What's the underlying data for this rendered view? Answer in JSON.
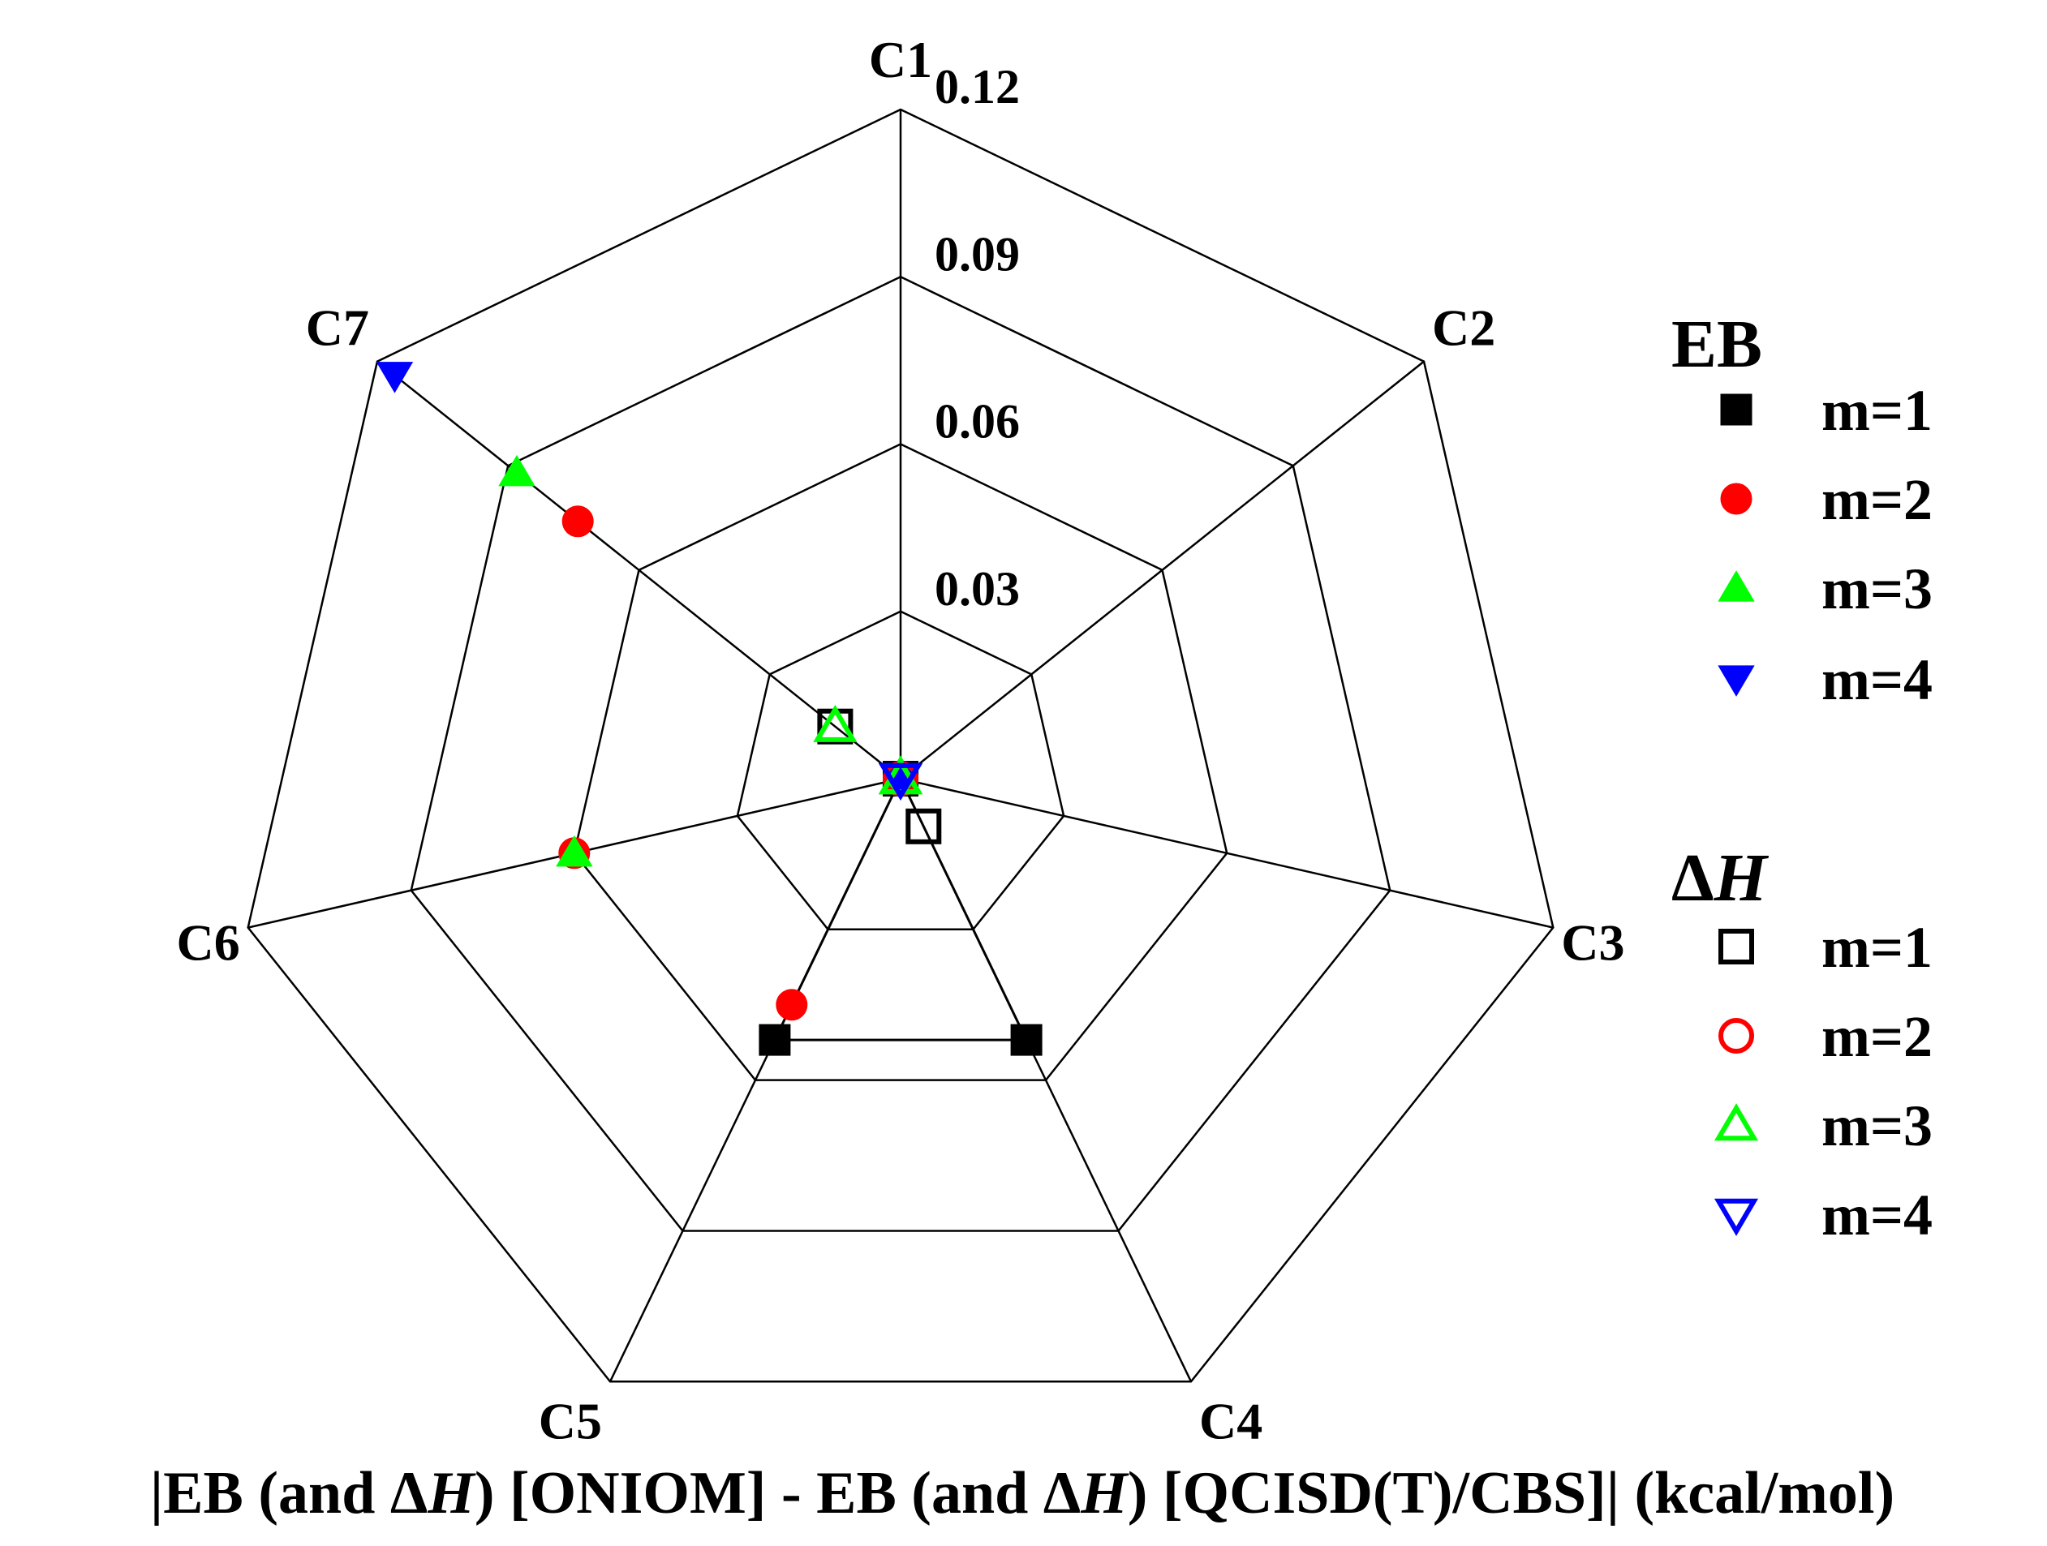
{
  "chart_data": {
    "type": "radar",
    "axes": [
      "C1",
      "C2",
      "C3",
      "C4",
      "C5",
      "C6",
      "C7"
    ],
    "rlim": [
      0,
      0.12
    ],
    "rticks": [
      0.03,
      0.06,
      0.09,
      0.12
    ],
    "rtick_labels": [
      "0.03",
      "0.06",
      "0.09",
      "0.12"
    ],
    "grid": true,
    "xlabel_parts": [
      {
        "text": "|EB (and Δ",
        "italic": false
      },
      {
        "text": "H",
        "italic": true
      },
      {
        "text": ") [ONIOM] - EB (and Δ",
        "italic": false
      },
      {
        "text": "H",
        "italic": true
      },
      {
        "text": ") [QCISD(T)/CBS]| (kcal/mol)",
        "italic": false
      }
    ],
    "legend_position": "right",
    "legend_groups": [
      {
        "title_parts": [
          {
            "text": "EB",
            "italic": false
          }
        ],
        "entries": [
          "EB-m1",
          "EB-m2",
          "EB-m3",
          "EB-m4"
        ]
      },
      {
        "title_parts": [
          {
            "text": "Δ",
            "italic": false
          },
          {
            "text": "H",
            "italic": true
          }
        ],
        "entries": [
          "dH-m1",
          "dH-m2",
          "dH-m3",
          "dH-m4"
        ]
      }
    ],
    "series": [
      {
        "id": "EB-m1",
        "label": "m=1",
        "marker": "square",
        "filled": true,
        "color": "#000000",
        "connect": true,
        "values": [
          0.0,
          0.0,
          0.0,
          0.052,
          0.052,
          0.0,
          0.0
        ]
      },
      {
        "id": "EB-m2",
        "label": "m=2",
        "marker": "circle",
        "filled": true,
        "color": "#ff0000",
        "connect": false,
        "values": [
          0.0,
          0.0,
          0.0,
          0.0,
          0.045,
          0.06,
          0.074
        ]
      },
      {
        "id": "EB-m3",
        "label": "m=3",
        "marker": "triangle-up",
        "filled": true,
        "color": "#00ff00",
        "connect": false,
        "values": [
          0.001,
          0.0,
          0.0,
          0.0,
          0.0,
          0.06,
          0.088
        ]
      },
      {
        "id": "EB-m4",
        "label": "m=4",
        "marker": "triangle-down",
        "filled": true,
        "color": "#0000ff",
        "connect": false,
        "values": [
          0.0,
          0.0,
          0.0,
          0.0,
          0.0,
          0.0,
          0.116
        ]
      },
      {
        "id": "dH-m1",
        "label": "m=1",
        "marker": "square",
        "filled": false,
        "color": "#000000",
        "connect": false,
        "values": [
          0.0,
          0.0,
          0.0,
          0.0095,
          0.0,
          0.0,
          0.015
        ]
      },
      {
        "id": "dH-m2",
        "label": "m=2",
        "marker": "circle",
        "filled": false,
        "color": "#ff0000",
        "connect": false,
        "values": [
          0.0,
          0.0,
          0.0,
          0.0,
          0.0,
          0.0,
          0.0
        ]
      },
      {
        "id": "dH-m3",
        "label": "m=3",
        "marker": "triangle-up",
        "filled": false,
        "color": "#00ff00",
        "connect": false,
        "values": [
          0.0,
          0.0,
          0.0,
          0.0,
          0.0,
          0.0,
          0.015
        ]
      },
      {
        "id": "dH-m4",
        "label": "m=4",
        "marker": "triangle-down",
        "filled": false,
        "color": "#0000ff",
        "connect": false,
        "values": [
          0.0,
          0.0,
          0.0,
          0.0,
          0.0,
          0.0,
          0.0
        ]
      }
    ]
  }
}
